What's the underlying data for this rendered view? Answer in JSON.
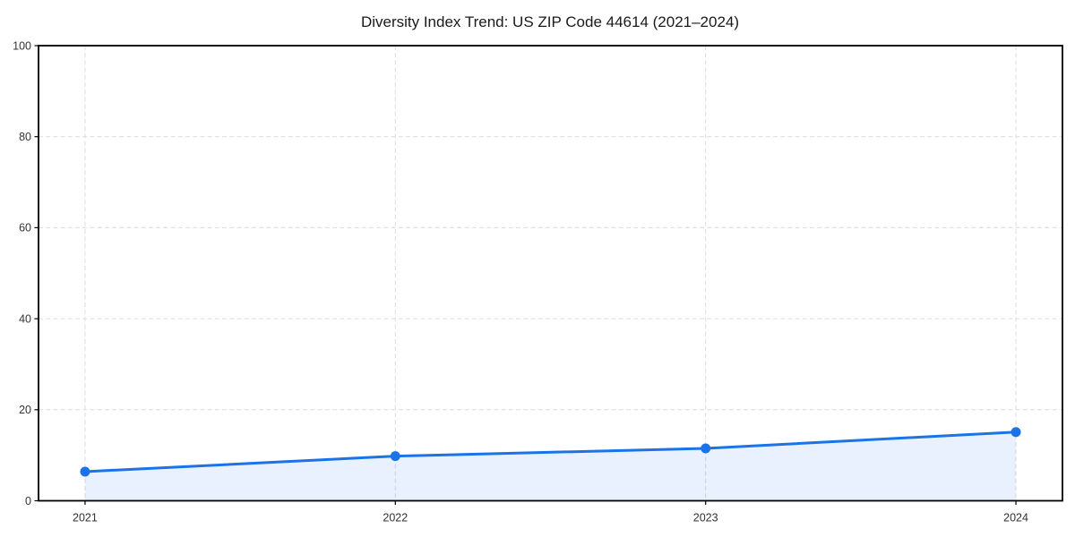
{
  "chart_data": {
    "type": "area",
    "title": "Diversity Index Trend: US ZIP Code 44614 (2021–2024)",
    "categories": [
      "2021",
      "2022",
      "2023",
      "2024"
    ],
    "values": [
      6.4,
      9.8,
      11.5,
      15.1
    ],
    "xlabel": "",
    "ylabel": "",
    "ylim": [
      0,
      100
    ],
    "yticks": [
      0,
      20,
      40,
      60,
      80,
      100
    ],
    "grid": true,
    "grid_style": "dashed",
    "legend": false,
    "colors": {
      "line": "#1a73e8",
      "marker": "#1a73e8",
      "fill": "rgba(26,115,232,0.10)",
      "grid": "#dcdcdc",
      "axis": "#000000",
      "title_text": "#1a1a1a",
      "tick_text": "#333333",
      "background": "#ffffff"
    }
  }
}
